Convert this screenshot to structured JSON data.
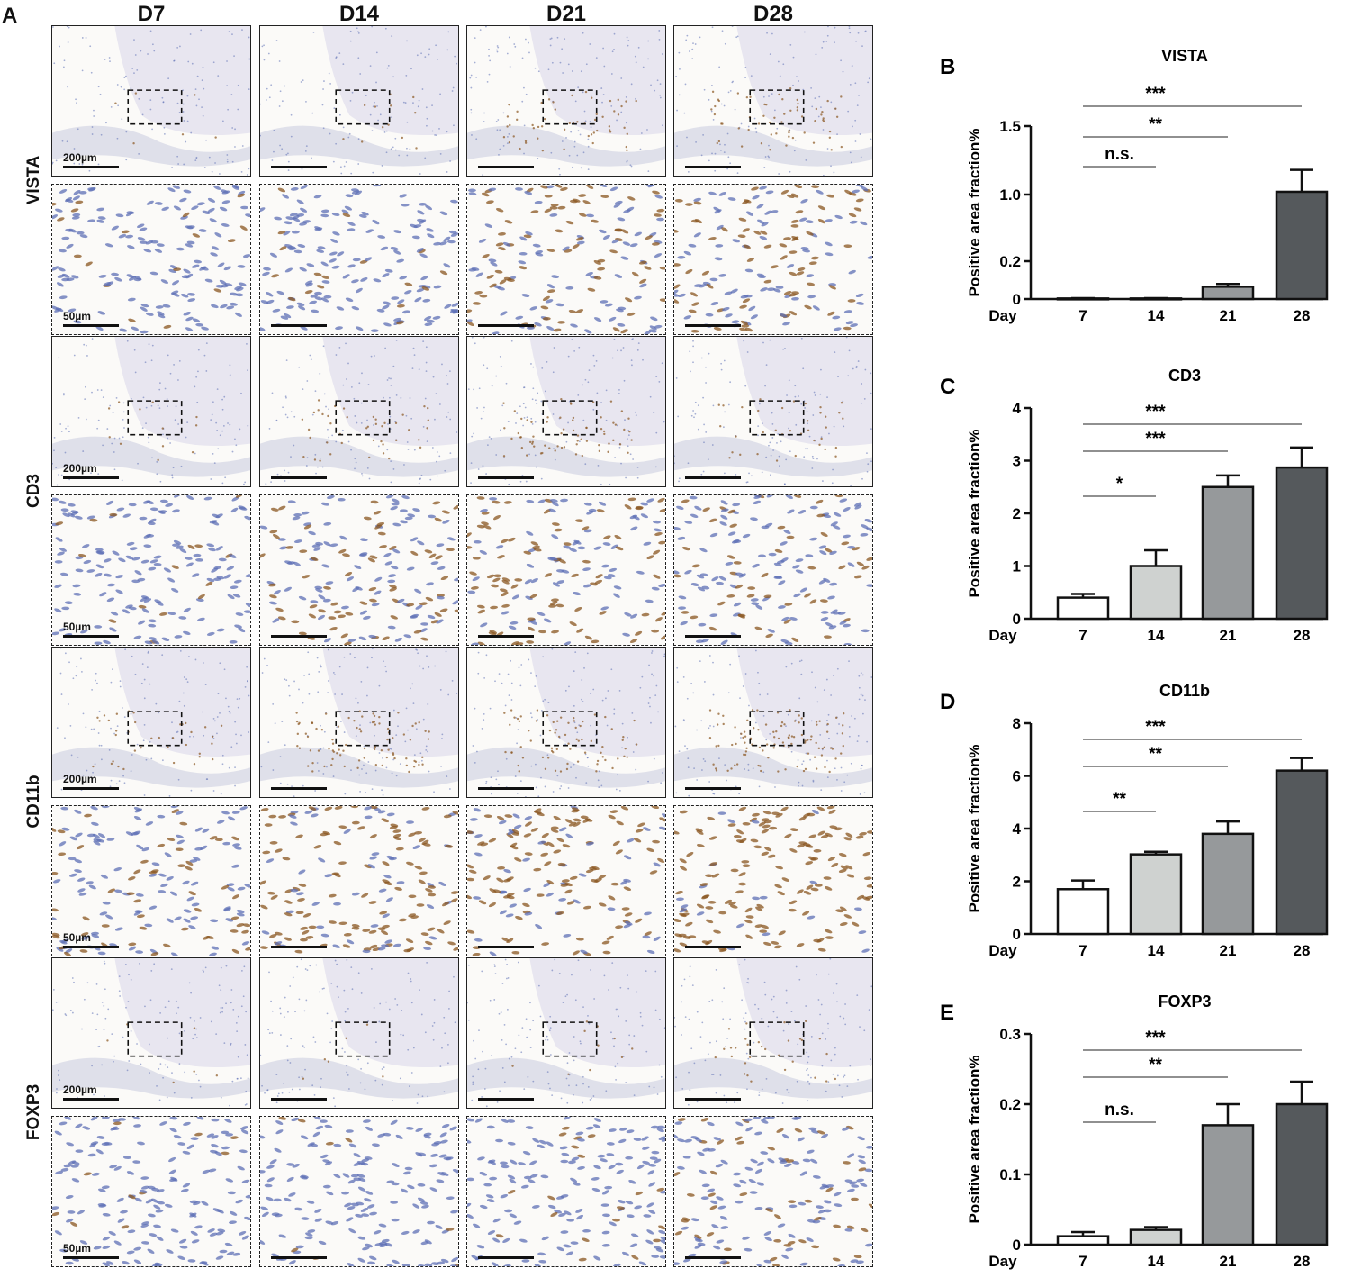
{
  "panel_a": {
    "letter": "A",
    "columns": [
      "D7",
      "D14",
      "D21",
      "D28"
    ],
    "rows": [
      {
        "marker": "VISTA",
        "scale_low": "200µm",
        "scale_high": "50µm",
        "stain_level": [
          0.05,
          0.1,
          0.45,
          0.5
        ]
      },
      {
        "marker": "CD3",
        "scale_low": "200µm",
        "scale_high": "50µm",
        "stain_level": [
          0.1,
          0.35,
          0.55,
          0.3
        ]
      },
      {
        "marker": "CD11b",
        "scale_low": "200µm",
        "scale_high": "50µm",
        "stain_level": [
          0.3,
          0.7,
          0.6,
          0.85
        ]
      },
      {
        "marker": "FOXP3",
        "scale_low": "200µm",
        "scale_high": "50µm",
        "stain_level": [
          0.05,
          0.05,
          0.08,
          0.25
        ]
      }
    ],
    "colors": {
      "tissue": "#e6e3ee",
      "hematoxylin": "#5d6fb5",
      "dab": "#8a5520",
      "background": "#fbfaf8"
    }
  },
  "chart_data": [
    {
      "letter": "B",
      "type": "bar",
      "title": "VISTA",
      "xlabel": "Day",
      "ylabel": "Positive area fraction%",
      "categories": [
        "7",
        "14",
        "21",
        "28"
      ],
      "y_ticks": [
        "0",
        "0.2",
        "1.0",
        "1.5"
      ],
      "y_axis_break": true,
      "values": [
        0.003,
        0.003,
        0.065,
        1.02
      ],
      "errors": [
        0.002,
        0.002,
        0.015,
        0.16
      ],
      "bar_colors": [
        "#ffffff",
        "#cfd2d0",
        "#96999b",
        "#55595c"
      ],
      "comparisons": [
        {
          "from": "7",
          "to": "14",
          "label": "n.s."
        },
        {
          "from": "7",
          "to": "21",
          "label": "**"
        },
        {
          "from": "7",
          "to": "28",
          "label": "***"
        }
      ]
    },
    {
      "letter": "C",
      "type": "bar",
      "title": "CD3",
      "xlabel": "Day",
      "ylabel": "Positive area fraction%",
      "categories": [
        "7",
        "14",
        "21",
        "28"
      ],
      "y_ticks": [
        "0",
        "1",
        "2",
        "3",
        "4"
      ],
      "ylim": [
        0,
        4
      ],
      "values": [
        0.4,
        1.0,
        2.5,
        2.87
      ],
      "errors": [
        0.07,
        0.3,
        0.22,
        0.38
      ],
      "bar_colors": [
        "#ffffff",
        "#cfd2d0",
        "#96999b",
        "#55595c"
      ],
      "comparisons": [
        {
          "from": "7",
          "to": "14",
          "label": "*"
        },
        {
          "from": "7",
          "to": "21",
          "label": "***"
        },
        {
          "from": "7",
          "to": "28",
          "label": "***"
        }
      ]
    },
    {
      "letter": "D",
      "type": "bar",
      "title": "CD11b",
      "xlabel": "Day",
      "ylabel": "Positive area fraction%",
      "categories": [
        "7",
        "14",
        "21",
        "28"
      ],
      "y_ticks": [
        "0",
        "2",
        "4",
        "6",
        "8"
      ],
      "ylim": [
        0,
        8
      ],
      "values": [
        1.7,
        3.02,
        3.8,
        6.2
      ],
      "errors": [
        0.33,
        0.1,
        0.47,
        0.48
      ],
      "bar_colors": [
        "#ffffff",
        "#cfd2d0",
        "#96999b",
        "#55595c"
      ],
      "comparisons": [
        {
          "from": "7",
          "to": "14",
          "label": "**"
        },
        {
          "from": "7",
          "to": "21",
          "label": "**"
        },
        {
          "from": "7",
          "to": "28",
          "label": "***"
        }
      ]
    },
    {
      "letter": "E",
      "type": "bar",
      "title": "FOXP3",
      "xlabel": "Day",
      "ylabel": "Positive area fraction%",
      "categories": [
        "7",
        "14",
        "21",
        "28"
      ],
      "y_ticks": [
        "0",
        "0.1",
        "0.2",
        "0.3"
      ],
      "ylim": [
        0,
        0.3
      ],
      "values": [
        0.012,
        0.021,
        0.17,
        0.2
      ],
      "errors": [
        0.006,
        0.004,
        0.03,
        0.032
      ],
      "bar_colors": [
        "#ffffff",
        "#cfd2d0",
        "#96999b",
        "#55595c"
      ],
      "comparisons": [
        {
          "from": "7",
          "to": "14",
          "label": "n.s."
        },
        {
          "from": "7",
          "to": "21",
          "label": "**"
        },
        {
          "from": "7",
          "to": "28",
          "label": "***"
        }
      ]
    }
  ]
}
